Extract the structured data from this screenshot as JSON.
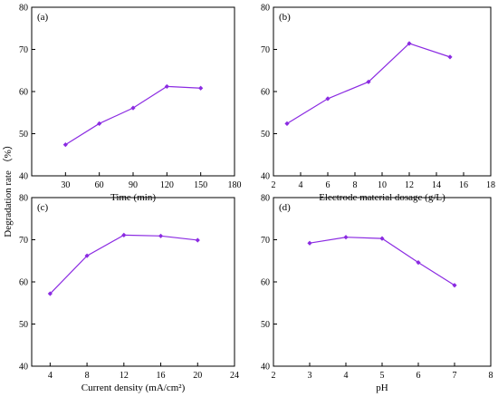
{
  "figure": {
    "ylabel": "Degradation rate （%）",
    "line_color": "#8B2BE2"
  },
  "chart_data": [
    {
      "type": "line",
      "panel": "(a)",
      "xlabel": "Time (min)",
      "ylabel": "",
      "xlim": [
        0,
        180
      ],
      "ylim": [
        40,
        80
      ],
      "xticks": [
        30,
        60,
        90,
        120,
        150,
        180
      ],
      "yticks": [
        40,
        50,
        60,
        70,
        80
      ],
      "x": [
        30,
        60,
        90,
        120,
        150
      ],
      "series": [
        {
          "values": [
            47.4,
            52.4,
            56.1,
            61.2,
            60.8
          ]
        }
      ]
    },
    {
      "type": "line",
      "panel": "(b)",
      "xlabel": "Electrode material dosage (g/L)",
      "ylabel": "",
      "xlim": [
        2,
        18
      ],
      "ylim": [
        40,
        80
      ],
      "xticks": [
        2,
        4,
        6,
        8,
        10,
        12,
        14,
        16,
        18
      ],
      "yticks": [
        40,
        50,
        60,
        70,
        80
      ],
      "x": [
        3,
        6,
        9,
        12,
        15
      ],
      "series": [
        {
          "values": [
            52.4,
            58.3,
            62.3,
            71.4,
            68.2
          ]
        }
      ]
    },
    {
      "type": "line",
      "panel": "(c)",
      "xlabel": "Current density (mA/cm²)",
      "ylabel": "",
      "xlim": [
        2,
        24
      ],
      "ylim": [
        40,
        80
      ],
      "xticks": [
        4,
        8,
        12,
        16,
        20,
        24
      ],
      "yticks": [
        40,
        50,
        60,
        70,
        80
      ],
      "x": [
        4,
        8,
        12,
        16,
        20
      ],
      "series": [
        {
          "values": [
            57.2,
            66.2,
            71.1,
            70.9,
            69.9
          ]
        }
      ]
    },
    {
      "type": "line",
      "panel": "(d)",
      "xlabel": "pH",
      "ylabel": "",
      "xlim": [
        2,
        8
      ],
      "ylim": [
        40,
        80
      ],
      "xticks": [
        2,
        3,
        4,
        5,
        6,
        7,
        8
      ],
      "yticks": [
        40,
        50,
        60,
        70,
        80
      ],
      "x": [
        3,
        4,
        5,
        6,
        7
      ],
      "series": [
        {
          "values": [
            69.2,
            70.6,
            70.3,
            64.6,
            59.2
          ]
        }
      ]
    }
  ]
}
